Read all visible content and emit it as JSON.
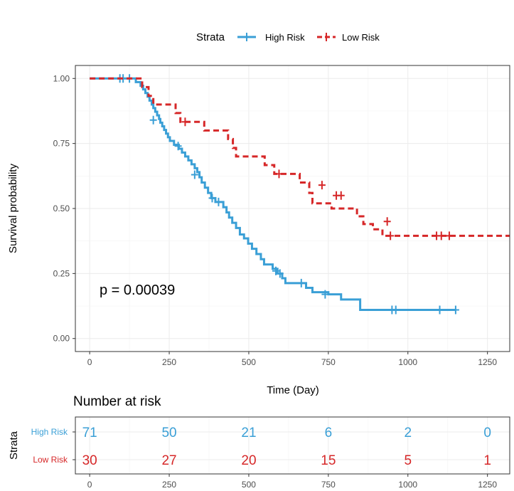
{
  "chart_data": [
    {
      "type": "line",
      "subtype": "kaplan-meier",
      "title": "",
      "xlabel": "Time (Day)",
      "ylabel": "Survival probability",
      "xlim": [
        -45,
        1320
      ],
      "ylim": [
        -0.05,
        1.05
      ],
      "x_ticks": [
        "0",
        "250",
        "500",
        "750",
        "1000",
        "1250"
      ],
      "y_ticks": [
        "0.00",
        "0.25",
        "0.50",
        "0.75",
        "1.00"
      ],
      "grid": true,
      "legend": {
        "title": "Strata",
        "position": "top"
      },
      "annotation": "p = 0.00039",
      "series": [
        {
          "name": "High Risk",
          "color": "#3a9fd6",
          "dash": "solid",
          "steps": [
            [
              0,
              1.0
            ],
            [
              145,
              0.986
            ],
            [
              160,
              0.972
            ],
            [
              168,
              0.958
            ],
            [
              175,
              0.944
            ],
            [
              182,
              0.93
            ],
            [
              188,
              0.915
            ],
            [
              195,
              0.9
            ],
            [
              200,
              0.886
            ],
            [
              206,
              0.872
            ],
            [
              212,
              0.858
            ],
            [
              218,
              0.844
            ],
            [
              222,
              0.83
            ],
            [
              228,
              0.816
            ],
            [
              234,
              0.802
            ],
            [
              240,
              0.788
            ],
            [
              246,
              0.774
            ],
            [
              252,
              0.76
            ],
            [
              265,
              0.745
            ],
            [
              280,
              0.73
            ],
            [
              290,
              0.715
            ],
            [
              300,
              0.7
            ],
            [
              310,
              0.685
            ],
            [
              320,
              0.67
            ],
            [
              330,
              0.655
            ],
            [
              338,
              0.64
            ],
            [
              345,
              0.62
            ],
            [
              352,
              0.6
            ],
            [
              362,
              0.58
            ],
            [
              372,
              0.56
            ],
            [
              382,
              0.54
            ],
            [
              395,
              0.525
            ],
            [
              420,
              0.505
            ],
            [
              430,
              0.485
            ],
            [
              438,
              0.465
            ],
            [
              448,
              0.445
            ],
            [
              460,
              0.425
            ],
            [
              472,
              0.4
            ],
            [
              485,
              0.385
            ],
            [
              498,
              0.365
            ],
            [
              510,
              0.345
            ],
            [
              524,
              0.325
            ],
            [
              538,
              0.305
            ],
            [
              548,
              0.285
            ],
            [
              575,
              0.268
            ],
            [
              590,
              0.25
            ],
            [
              605,
              0.232
            ],
            [
              615,
              0.213
            ],
            [
              680,
              0.195
            ],
            [
              700,
              0.178
            ],
            [
              750,
              0.17
            ],
            [
              790,
              0.15
            ],
            [
              850,
              0.11
            ],
            [
              1150,
              0.11
            ]
          ],
          "censor": [
            [
              95,
              1.0
            ],
            [
              105,
              1.0
            ],
            [
              125,
              1.0
            ],
            [
              200,
              0.84
            ],
            [
              278,
              0.74
            ],
            [
              330,
              0.63
            ],
            [
              385,
              0.54
            ],
            [
              405,
              0.525
            ],
            [
              585,
              0.26
            ],
            [
              598,
              0.25
            ],
            [
              665,
              0.213
            ],
            [
              740,
              0.17
            ],
            [
              950,
              0.11
            ],
            [
              962,
              0.11
            ],
            [
              1100,
              0.11
            ],
            [
              1150,
              0.11
            ]
          ]
        },
        {
          "name": "Low Risk",
          "color": "#d62728",
          "dash": "dashed",
          "steps": [
            [
              0,
              1.0
            ],
            [
              165,
              0.967
            ],
            [
              185,
              0.933
            ],
            [
              200,
              0.9
            ],
            [
              270,
              0.867
            ],
            [
              285,
              0.833
            ],
            [
              360,
              0.8
            ],
            [
              435,
              0.767
            ],
            [
              450,
              0.733
            ],
            [
              460,
              0.7
            ],
            [
              550,
              0.667
            ],
            [
              580,
              0.633
            ],
            [
              660,
              0.6
            ],
            [
              690,
              0.56
            ],
            [
              700,
              0.52
            ],
            [
              760,
              0.5
            ],
            [
              840,
              0.47
            ],
            [
              860,
              0.44
            ],
            [
              890,
              0.42
            ],
            [
              920,
              0.395
            ],
            [
              1320,
              0.395
            ]
          ],
          "censor": [
            [
              300,
              0.833
            ],
            [
              595,
              0.633
            ],
            [
              730,
              0.59
            ],
            [
              775,
              0.55
            ],
            [
              790,
              0.55
            ],
            [
              935,
              0.45
            ],
            [
              945,
              0.395
            ],
            [
              1090,
              0.395
            ],
            [
              1105,
              0.395
            ],
            [
              1130,
              0.395
            ]
          ]
        }
      ]
    },
    {
      "type": "table",
      "title": "Number at risk",
      "xlabel": "",
      "ylabel": "Strata",
      "xlim": [
        -45,
        1320
      ],
      "columns": [
        "0",
        "250",
        "500",
        "750",
        "1000",
        "1250"
      ],
      "rows": [
        {
          "label": "High Risk",
          "color": "#3a9fd6",
          "values": [
            "71",
            "50",
            "21",
            "6",
            "2",
            "0"
          ]
        },
        {
          "label": "Low Risk",
          "color": "#d62728",
          "values": [
            "30",
            "27",
            "20",
            "15",
            "5",
            "1"
          ]
        }
      ]
    }
  ]
}
